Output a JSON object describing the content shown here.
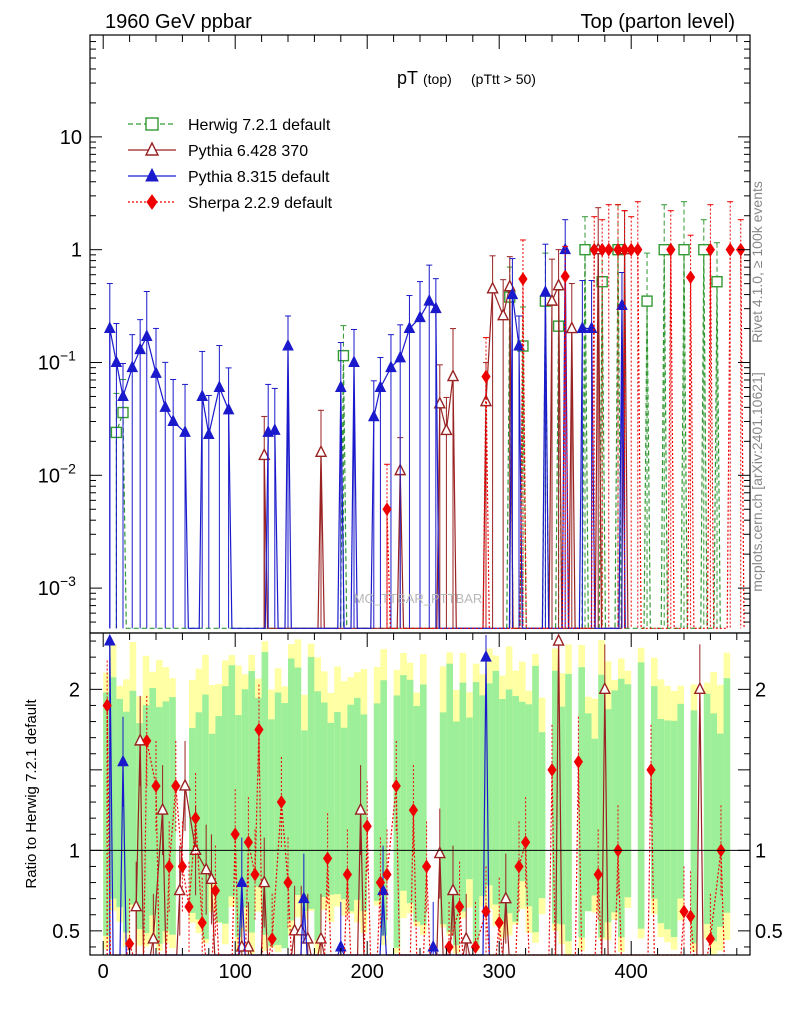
{
  "header": {
    "left": "1960 GeV ppbar",
    "right": "Top (parton level)"
  },
  "side_text": {
    "rivet": "Rivet 4.1.0, ≥ 100k events",
    "ref": "mcplots.cern.ch [arXiv:2401.10621]"
  },
  "watermark": "MC_TTBAR_PTTBAR",
  "chart_data": [
    {
      "panel": "main",
      "type": "line",
      "title": "pT",
      "title_sub": "(top)",
      "title_sub2": "(pTtt > 50)",
      "xlabel": "",
      "ylabel": "",
      "xlim": [
        -10,
        490
      ],
      "ylim": [
        0.0004,
        80
      ],
      "yscale": "log",
      "legend_position": "top-left",
      "y_ticks": [
        {
          "v": 10,
          "l": "10"
        },
        {
          "v": 1,
          "l": "1"
        },
        {
          "v": 0.1,
          "l": "10",
          "e": "−1"
        },
        {
          "v": 0.01,
          "l": "10",
          "e": "−2"
        },
        {
          "v": 0.001,
          "l": "10",
          "e": "−3"
        }
      ],
      "series": [
        {
          "name": "Herwig 7.2.1 default",
          "color": "#339933",
          "marker": "open-square",
          "points": [
            [
              10,
              0.024
            ],
            [
              15,
              0.036
            ],
            [
              182,
              0.115
            ],
            [
              308,
              0.38
            ],
            [
              318,
              0.14
            ],
            [
              335,
              0.35
            ],
            [
              345,
              0.21
            ],
            [
              365,
              1.0
            ],
            [
              378,
              0.52
            ],
            [
              390,
              1.0
            ],
            [
              412,
              0.35
            ],
            [
              425,
              1.0
            ],
            [
              440,
              1.0
            ],
            [
              455,
              1.0
            ],
            [
              465,
              0.52
            ]
          ]
        },
        {
          "name": "Pythia 6.428 370",
          "color": "#992222",
          "marker": "open-triangle",
          "points": [
            [
              122,
              0.015
            ],
            [
              165,
              0.016
            ],
            [
              225,
              0.011
            ],
            [
              255,
              0.043
            ],
            [
              260,
              0.025
            ],
            [
              265,
              0.075
            ],
            [
              290,
              0.045
            ],
            [
              295,
              0.45
            ],
            [
              303,
              0.26
            ],
            [
              308,
              0.47
            ],
            [
              340,
              0.35
            ],
            [
              345,
              0.48
            ],
            [
              355,
              0.2
            ],
            [
              375,
              1.0
            ],
            [
              395,
              1.0
            ]
          ]
        },
        {
          "name": "Pythia 8.315 default",
          "color": "#1a1acc",
          "marker": "filled-triangle",
          "points": [
            [
              5,
              0.2
            ],
            [
              10,
              0.1
            ],
            [
              15,
              0.05
            ],
            [
              22,
              0.09
            ],
            [
              28,
              0.13
            ],
            [
              33,
              0.17
            ],
            [
              40,
              0.08
            ],
            [
              47,
              0.04
            ],
            [
              53,
              0.03
            ],
            [
              62,
              0.024
            ],
            [
              75,
              0.05
            ],
            [
              80,
              0.023
            ],
            [
              88,
              0.06
            ],
            [
              95,
              0.038
            ],
            [
              125,
              0.024
            ],
            [
              130,
              0.025
            ],
            [
              140,
              0.14
            ],
            [
              180,
              0.06
            ],
            [
              190,
              0.1
            ],
            [
              205,
              0.033
            ],
            [
              210,
              0.06
            ],
            [
              218,
              0.09
            ],
            [
              225,
              0.11
            ],
            [
              232,
              0.2
            ],
            [
              240,
              0.25
            ],
            [
              247,
              0.35
            ],
            [
              252,
              0.3
            ],
            [
              310,
              0.4
            ],
            [
              315,
              0.14
            ],
            [
              335,
              0.42
            ],
            [
              350,
              1.0
            ],
            [
              363,
              0.2
            ],
            [
              370,
              0.2
            ],
            [
              393,
              0.32
            ]
          ]
        },
        {
          "name": "Sherpa 2.2.9 default",
          "color": "#ee0000",
          "marker": "filled-diamond",
          "points": [
            [
              215,
              0.005
            ],
            [
              290,
              0.075
            ],
            [
              318,
              0.55
            ],
            [
              350,
              0.58
            ],
            [
              372,
              1.0
            ],
            [
              378,
              1.0
            ],
            [
              383,
              1.0
            ],
            [
              390,
              1.0
            ],
            [
              395,
              1.0
            ],
            [
              400,
              1.0
            ],
            [
              405,
              1.0
            ],
            [
              430,
              1.0
            ],
            [
              445,
              0.57
            ],
            [
              460,
              1.0
            ],
            [
              475,
              1.0
            ],
            [
              483,
              1.0
            ]
          ]
        }
      ],
      "baseline_value": 0.00044
    },
    {
      "panel": "ratio",
      "type": "line",
      "xlabel": "",
      "ylabel": "Ratio to Herwig 7.2.1 default",
      "xlim": [
        -10,
        490
      ],
      "ylim": [
        0.35,
        2.35
      ],
      "x_ticks": [
        0,
        100,
        200,
        300,
        400
      ],
      "y_ticks": [
        0.5,
        1,
        2
      ],
      "reference_line": 1,
      "series": [
        {
          "name": "Pythia 6.428 370",
          "color": "#992222",
          "marker": "open-triangle",
          "points": [
            [
              25,
              0.65
            ],
            [
              28,
              1.68
            ],
            [
              38,
              0.45
            ],
            [
              45,
              1.25
            ],
            [
              58,
              0.75
            ],
            [
              62,
              1.4
            ],
            [
              70,
              1.0
            ],
            [
              78,
              0.88
            ],
            [
              82,
              0.82
            ],
            [
              105,
              0.4
            ],
            [
              110,
              0.4
            ],
            [
              122,
              0.8
            ],
            [
              145,
              0.5
            ],
            [
              150,
              0.5
            ],
            [
              155,
              0.45
            ],
            [
              165,
              0.45
            ],
            [
              195,
              1.25
            ],
            [
              255,
              0.98
            ],
            [
              265,
              0.75
            ],
            [
              275,
              0.45
            ],
            [
              305,
              0.7
            ],
            [
              345,
              2.3
            ],
            [
              380,
              2.0
            ],
            [
              452,
              2.0
            ]
          ]
        },
        {
          "name": "Pythia 8.315 default",
          "color": "#1a1acc",
          "marker": "filled-triangle",
          "points": [
            [
              5,
              2.3
            ],
            [
              15,
              1.55
            ],
            [
              105,
              0.8
            ],
            [
              152,
              0.7
            ],
            [
              180,
              0.4
            ],
            [
              212,
              0.75
            ],
            [
              250,
              0.4
            ],
            [
              290,
              2.2
            ]
          ]
        },
        {
          "name": "Sherpa 2.2.9 default",
          "color": "#ee0000",
          "marker": "filled-diamond",
          "points": [
            [
              3,
              1.9
            ],
            [
              20,
              0.42
            ],
            [
              33,
              1.68
            ],
            [
              40,
              1.4
            ],
            [
              50,
              0.9
            ],
            [
              55,
              1.4
            ],
            [
              60,
              0.9
            ],
            [
              65,
              0.65
            ],
            [
              70,
              1.2
            ],
            [
              75,
              0.55
            ],
            [
              85,
              0.75
            ],
            [
              100,
              1.1
            ],
            [
              110,
              1.05
            ],
            [
              115,
              0.85
            ],
            [
              118,
              1.75
            ],
            [
              128,
              0.45
            ],
            [
              135,
              1.3
            ],
            [
              140,
              0.8
            ],
            [
              170,
              0.95
            ],
            [
              185,
              0.85
            ],
            [
              200,
              1.15
            ],
            [
              210,
              0.8
            ],
            [
              215,
              0.85
            ],
            [
              222,
              1.4
            ],
            [
              235,
              1.25
            ],
            [
              245,
              0.9
            ],
            [
              262,
              0.4
            ],
            [
              270,
              0.65
            ],
            [
              282,
              0.4
            ],
            [
              290,
              0.62
            ],
            [
              300,
              0.55
            ],
            [
              315,
              0.9
            ],
            [
              320,
              1.05
            ],
            [
              340,
              1.5
            ],
            [
              360,
              1.55
            ],
            [
              375,
              0.85
            ],
            [
              390,
              1.0
            ],
            [
              415,
              1.5
            ],
            [
              440,
              0.62
            ],
            [
              445,
              0.59
            ],
            [
              460,
              0.45
            ],
            [
              468,
              1.0
            ]
          ]
        }
      ]
    }
  ]
}
